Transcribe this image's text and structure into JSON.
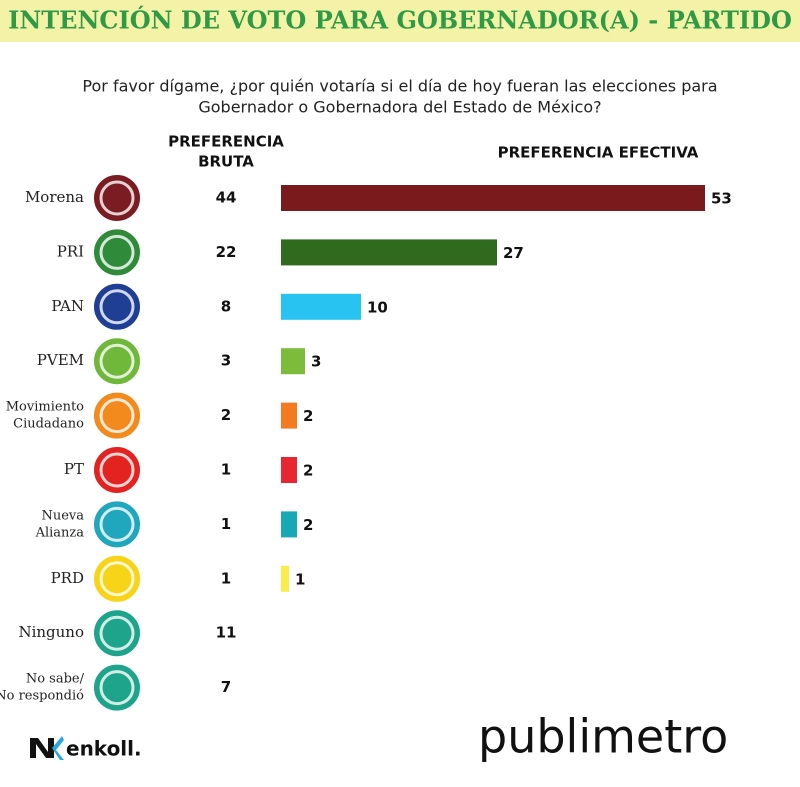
{
  "chart_data": {
    "type": "bar",
    "title": "INTENCIÓN DE VOTO PARA GOBERNADOR(A) - PARTIDO",
    "subtitle": [
      "Por favor dígame, ¿por quién votaría si el día de hoy fueran las elecciones para",
      "Gobernador o Gobernadora del Estado de México?"
    ],
    "categories": [
      [
        "Morena"
      ],
      [
        "PRI"
      ],
      [
        "PAN"
      ],
      [
        "PVEM"
      ],
      [
        "Movimiento",
        "Ciudadano"
      ],
      [
        "PT"
      ],
      [
        "Nueva",
        "Alianza"
      ],
      [
        "PRD"
      ],
      [
        "Ninguno"
      ],
      [
        "No sabe/",
        "No respondió"
      ]
    ],
    "logo_colors": [
      "#7a1c22",
      "#2f8a3a",
      "#1f3f94",
      "#6fb83a",
      "#f28a1e",
      "#e3231f",
      "#20a6bd",
      "#f7d417",
      "#1ea48a",
      "#1ea48a"
    ],
    "xlim": [
      0,
      55
    ],
    "series": [
      {
        "name": [
          "PREFERENCIA",
          "BRUTA"
        ],
        "display": "text",
        "values": [
          44,
          22,
          8,
          3,
          2,
          1,
          1,
          1,
          11,
          7
        ]
      },
      {
        "name": [
          "PREFERENCIA EFECTIVA"
        ],
        "display": "bar",
        "values": [
          53,
          27,
          10,
          3,
          2,
          2,
          2,
          1,
          null,
          null
        ],
        "colors": [
          "#7b1a1c",
          "#2f6a1f",
          "#29c3f1",
          "#7dbb3b",
          "#f47a22",
          "#e82630",
          "#18a7b5",
          "#f9ec4b",
          null,
          null
        ]
      }
    ]
  },
  "footer": {
    "source": "enkoll.",
    "publisher": "publimetro"
  }
}
